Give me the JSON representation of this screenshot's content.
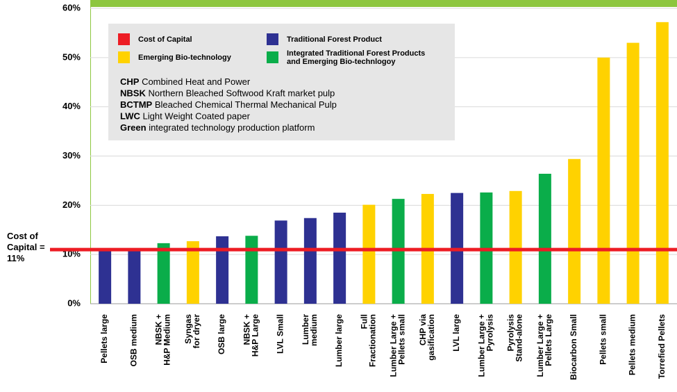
{
  "chart_data": {
    "type": "bar",
    "categories": [
      [
        "Pellets  large"
      ],
      [
        "OSB medium"
      ],
      [
        "NBSK +",
        "H&P Medium"
      ],
      [
        "Syngas",
        "for dryer"
      ],
      [
        "OSB large"
      ],
      [
        "NBSK +",
        "H&P Large"
      ],
      [
        "LVL  Small"
      ],
      [
        "Lumber",
        "medium"
      ],
      [
        "Lumber large"
      ],
      [
        "Full",
        "Fractionation"
      ],
      [
        "Lumber Large +",
        "Pellets small"
      ],
      [
        "CHP via",
        "gasification"
      ],
      [
        "LVL large"
      ],
      [
        "Lumber Large +",
        "Pyrolysis"
      ],
      [
        "Pyrolysis",
        "Stand-alone"
      ],
      [
        "Lumber Large +",
        "Pellets Large"
      ],
      [
        "Biocarbon Small"
      ],
      [
        "Pellets  small"
      ],
      [
        "Pellets medium"
      ],
      [
        "Torrefied Pellets"
      ]
    ],
    "values": [
      10.8,
      11.1,
      12.3,
      12.7,
      13.7,
      13.8,
      16.9,
      17.4,
      18.5,
      20.1,
      21.3,
      22.3,
      22.5,
      22.6,
      22.9,
      26.4,
      29.4,
      50,
      53,
      57.2
    ],
    "bar_group": [
      1,
      1,
      3,
      2,
      1,
      3,
      1,
      1,
      1,
      2,
      3,
      2,
      1,
      3,
      2,
      3,
      2,
      2,
      2,
      2
    ],
    "legend": [
      {
        "name": [
          "Cost of Capital"
        ],
        "color": "#ed1c24"
      },
      {
        "name": [
          "Traditional Forest Product"
        ],
        "color": "#2e3192"
      },
      {
        "name": [
          "Emerging Bio-technology"
        ],
        "color": "#ffd200"
      },
      {
        "name": [
          "Integrated Traditional Forest Products",
          "and Emerging Bio-technlogoy"
        ],
        "color": "#0aad4a"
      }
    ],
    "notes": [
      {
        "abbr": "CHP",
        "text": " Combined Heat and Power"
      },
      {
        "abbr": "NBSK",
        "text": " Northern Bleached Softwood Kraft market pulp"
      },
      {
        "abbr": "BCTMP",
        "text": " Bleached Chemical Thermal Mechanical Pulp"
      },
      {
        "abbr": "LWC",
        "text": " Light Weight Coated paper"
      },
      {
        "abbr": "Green",
        "text": " integrated technology production platform"
      }
    ],
    "cost_of_capital": {
      "value": 11,
      "label": [
        "Cost of",
        "Capital =",
        "11%"
      ]
    },
    "ylim": [
      0,
      60
    ],
    "yticks": [
      {
        "value": 0,
        "label": "0%"
      },
      {
        "value": 10,
        "label": "10%"
      },
      {
        "value": 20,
        "label": "20%"
      },
      {
        "value": 30,
        "label": "30%"
      },
      {
        "value": 40,
        "label": "40%"
      },
      {
        "value": 50,
        "label": "50%"
      },
      {
        "value": 60,
        "label": "60%"
      }
    ],
    "grid": true
  }
}
